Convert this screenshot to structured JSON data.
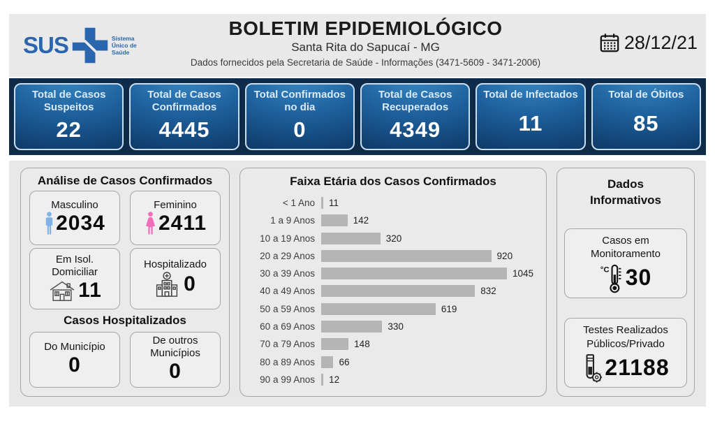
{
  "header": {
    "logo_text": "SUS",
    "logo_tagline": "Sistema Único de Saúde",
    "title": "BOLETIM EPIDEMIOLÓGICO",
    "subtitle": "Santa Rita do Sapucaí - MG",
    "info_line": "Dados fornecidos pela Secretaria de Saúde - Informações (3471-5609 - 3471-2006)",
    "date": "28/12/21"
  },
  "stat_cards": [
    {
      "label": "Total de Casos Suspeitos",
      "value": "22"
    },
    {
      "label": "Total de Casos Confirmados",
      "value": "4445"
    },
    {
      "label": "Total Confirmados no dia",
      "value": "0"
    },
    {
      "label": "Total de Casos Recuperados",
      "value": "4349"
    },
    {
      "label": "Total de Infectados",
      "value": "11"
    },
    {
      "label": "Total de Óbitos",
      "value": "85"
    }
  ],
  "analysis": {
    "title": "Análise de Casos Confirmados",
    "male_label": "Masculino",
    "male_value": "2034",
    "female_label": "Feminino",
    "female_value": "2411",
    "isolation_label": "Em Isol. Domiciliar",
    "isolation_value": "11",
    "hospitalized_label": "Hospitalizado",
    "hospitalized_value": "0",
    "hospital_section_title": "Casos Hospitalizados",
    "municipality_label": "Do Município",
    "municipality_value": "0",
    "other_municipalities_label": "De outros Municípios",
    "other_municipalities_value": "0"
  },
  "chart_data": {
    "type": "bar",
    "orientation": "horizontal",
    "title": "Faixa Etária dos Casos Confirmados",
    "categories": [
      "< 1 Ano",
      "1 a 9 Anos",
      "10 a 19 Anos",
      "20 a 29 Anos",
      "30 a 39 Anos",
      "40 a 49 Anos",
      "50 a 59 Anos",
      "60 a 69 Anos",
      "70 a 79 Anos",
      "80 a 89 Anos",
      "90 a 99 Anos"
    ],
    "values": [
      11,
      142,
      320,
      920,
      1045,
      832,
      619,
      330,
      148,
      66,
      12
    ],
    "xlim": [
      0,
      1100
    ],
    "bar_color": "#b5b5b5",
    "value_labels": true,
    "grid": false,
    "legend": false
  },
  "info": {
    "title": "Dados Informativos",
    "monitoring_label": "Casos em Monitoramento",
    "monitoring_value": "30",
    "tests_label": "Testes Realizados Públicos/Privado",
    "tests_value": "21188"
  },
  "colors": {
    "band_background": "#0e2b4a",
    "stat_card_blue_light": "#3b8ac4",
    "stat_card_blue_dark": "#0d3764",
    "stat_card_border": "#c9def0",
    "sus_blue": "#2a66ad",
    "male_icon": "#7fb2e5",
    "female_icon": "#f06db8",
    "bar_gray": "#b5b5b5",
    "section_background": "#e8e8e8"
  }
}
